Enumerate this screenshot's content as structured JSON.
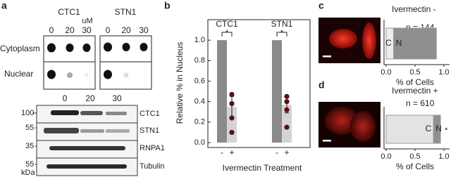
{
  "panel_labels": [
    "a",
    "b",
    "c",
    "d"
  ],
  "dot_blot": {
    "unit": "uM",
    "groups": [
      "CTC1",
      "STN1"
    ],
    "concentrations": [
      "0",
      "20",
      "30"
    ],
    "rows": [
      "Cytoplasm",
      "Nuclear"
    ]
  },
  "western_blot": {
    "concentrations": [
      "0",
      "20",
      "30"
    ],
    "bands": [
      "CTC1",
      "STN1",
      "RNPA1",
      "Tubulin"
    ],
    "markers": [
      "100",
      "55",
      "35",
      "55"
    ],
    "marker_unit": "kDa"
  },
  "chart_data": [
    {
      "type": "bar",
      "categories": [
        "CTC1",
        "STN1"
      ],
      "series": [
        {
          "name": "-",
          "color": "#8a8a8a",
          "values": [
            1.0,
            1.0
          ]
        },
        {
          "name": "+",
          "color": "#d4d4d4",
          "values": [
            0.35,
            0.37
          ],
          "errors": [
            0.1,
            0.08
          ],
          "points": [
            [
              0.47,
              0.38,
              0.24,
              0.1
            ],
            [
              0.45,
              0.4,
              0.32,
              0.15
            ]
          ],
          "point_color": "#5a0f14"
        }
      ],
      "annotations": [
        "*",
        "*"
      ],
      "xlabel": "Ivermectin Treatment",
      "ylabel": "Relative % in Nucleus",
      "ylim": [
        0,
        1.2
      ],
      "yticks": [
        {
          "value": 0,
          "label": "0.0"
        },
        0.2,
        0.4,
        0.6,
        0.8,
        {
          "value": 1,
          "label": "1.0"
        }
      ]
    },
    {
      "type": "stacked_barh",
      "title": "Ivermectin -",
      "annotations": [
        "n = 144"
      ],
      "series": [
        {
          "name": "C",
          "color": "#ececec",
          "values": [
            0.13
          ]
        },
        {
          "name": "N",
          "color": "#8f8f8f",
          "values": [
            0.74
          ]
        }
      ],
      "xlabel": "% of Cells",
      "xlim": [
        0,
        1
      ],
      "xticks": [
        {
          "value": 0,
          "label": "0.0"
        },
        0.5,
        {
          "value": 1,
          "label": "1.0"
        }
      ]
    },
    {
      "type": "stacked_barh",
      "title": "Ivermectin +",
      "annotations": [
        "n = 610",
        "*"
      ],
      "series": [
        {
          "name": "C",
          "color": "#e3e3e3",
          "values": [
            0.82
          ]
        },
        {
          "name": "N",
          "color": "#8f8f8f",
          "values": [
            0.12
          ]
        }
      ],
      "xlabel": "% of Cells",
      "xlim": [
        0,
        1
      ],
      "xticks": [
        {
          "value": 0,
          "label": "0.0"
        },
        0.5,
        {
          "value": 1,
          "label": "1.0"
        }
      ]
    }
  ]
}
